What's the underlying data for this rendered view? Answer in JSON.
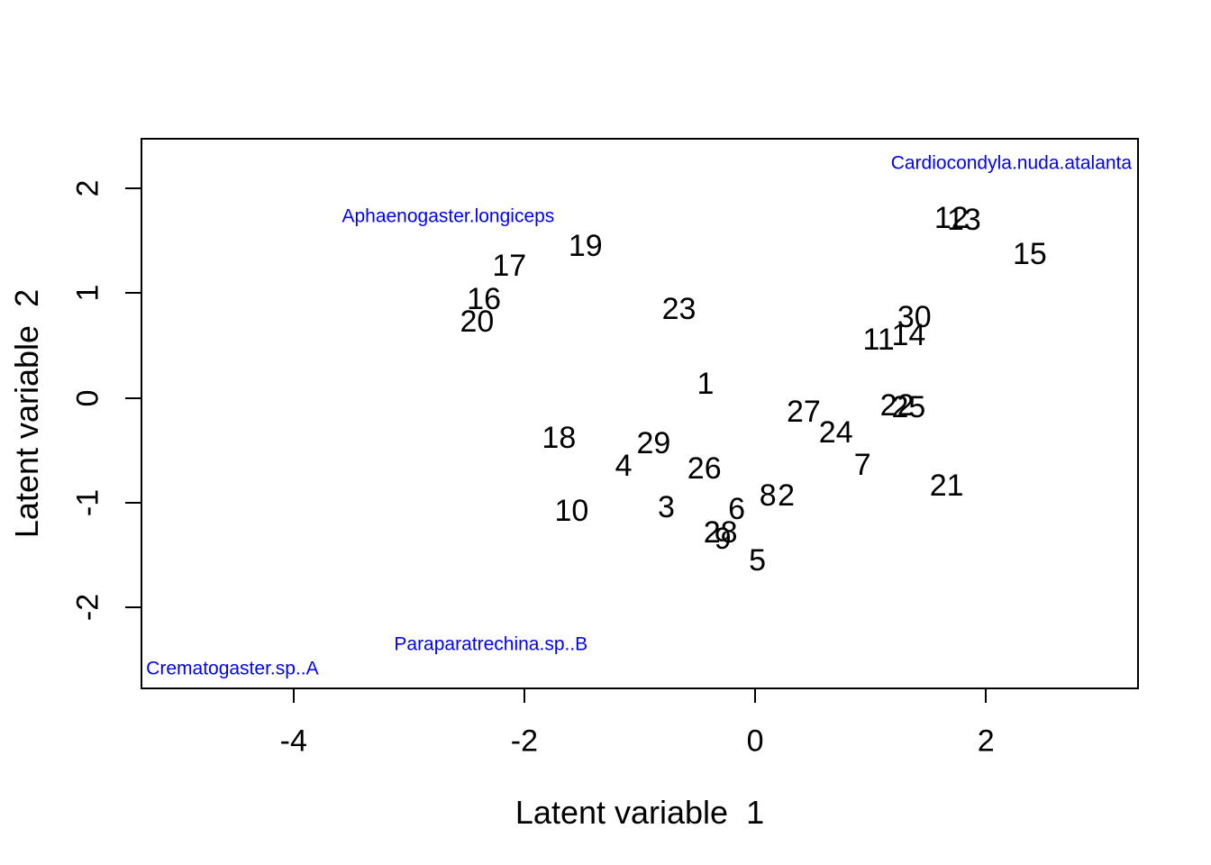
{
  "colors": {
    "background": "#ffffff",
    "axis": "#000000",
    "point_label": "#000000",
    "species_label": "#0000ff"
  },
  "chart_data": {
    "type": "scatter",
    "title": "",
    "xlabel": "Latent variable  1",
    "ylabel": "Latent variable  2",
    "xlim": [
      -5.31,
      3.31
    ],
    "ylim": [
      -2.76,
      2.46
    ],
    "x_ticks": [
      -4,
      -2,
      0,
      2
    ],
    "y_ticks": [
      -2,
      -1,
      0,
      1,
      2
    ],
    "grid": false,
    "legend": false,
    "point_style": "text-labels",
    "points": [
      {
        "label": "1",
        "x": -0.43,
        "y": 0.13
      },
      {
        "label": "2",
        "x": 0.27,
        "y": -0.93
      },
      {
        "label": "3",
        "x": -0.77,
        "y": -1.04
      },
      {
        "label": "4",
        "x": -1.14,
        "y": -0.65
      },
      {
        "label": "5",
        "x": 0.02,
        "y": -1.55
      },
      {
        "label": "6",
        "x": -0.16,
        "y": -1.06
      },
      {
        "label": "7",
        "x": 0.93,
        "y": -0.64
      },
      {
        "label": "8",
        "x": 0.11,
        "y": -0.93
      },
      {
        "label": "9",
        "x": -0.28,
        "y": -1.34
      },
      {
        "label": "10",
        "x": -1.59,
        "y": -1.08
      },
      {
        "label": "11",
        "x": 1.07,
        "y": 0.55
      },
      {
        "label": "12",
        "x": 1.7,
        "y": 1.71
      },
      {
        "label": "13",
        "x": 1.81,
        "y": 1.7
      },
      {
        "label": "14",
        "x": 1.33,
        "y": 0.6
      },
      {
        "label": "15",
        "x": 2.38,
        "y": 1.37
      },
      {
        "label": "16",
        "x": -2.35,
        "y": 0.94
      },
      {
        "label": "17",
        "x": -2.13,
        "y": 1.26
      },
      {
        "label": "18",
        "x": -1.7,
        "y": -0.38
      },
      {
        "label": "19",
        "x": -1.47,
        "y": 1.45
      },
      {
        "label": "20",
        "x": -2.41,
        "y": 0.73
      },
      {
        "label": "21",
        "x": 1.66,
        "y": -0.84
      },
      {
        "label": "22",
        "x": 1.23,
        "y": -0.07
      },
      {
        "label": "23",
        "x": -0.66,
        "y": 0.85
      },
      {
        "label": "24",
        "x": 0.7,
        "y": -0.33
      },
      {
        "label": "25",
        "x": 1.33,
        "y": -0.09
      },
      {
        "label": "26",
        "x": -0.44,
        "y": -0.67
      },
      {
        "label": "27",
        "x": 0.42,
        "y": -0.13
      },
      {
        "label": "28",
        "x": -0.3,
        "y": -1.28
      },
      {
        "label": "29",
        "x": -0.88,
        "y": -0.43
      },
      {
        "label": "30",
        "x": 1.38,
        "y": 0.77
      }
    ],
    "annotations": [
      {
        "label": "Cardiocondyla.nuda.atalanta",
        "x": 2.22,
        "y": 2.24,
        "color": "#0000ff"
      },
      {
        "label": "Aphaenogaster.longiceps",
        "x": -2.66,
        "y": 1.73,
        "color": "#0000ff"
      },
      {
        "label": "Paraparatrechina.sp..B",
        "x": -2.29,
        "y": -2.35,
        "color": "#0000ff"
      },
      {
        "label": "Crematogaster.sp..A",
        "x": -4.53,
        "y": -2.58,
        "color": "#0000ff"
      }
    ]
  }
}
